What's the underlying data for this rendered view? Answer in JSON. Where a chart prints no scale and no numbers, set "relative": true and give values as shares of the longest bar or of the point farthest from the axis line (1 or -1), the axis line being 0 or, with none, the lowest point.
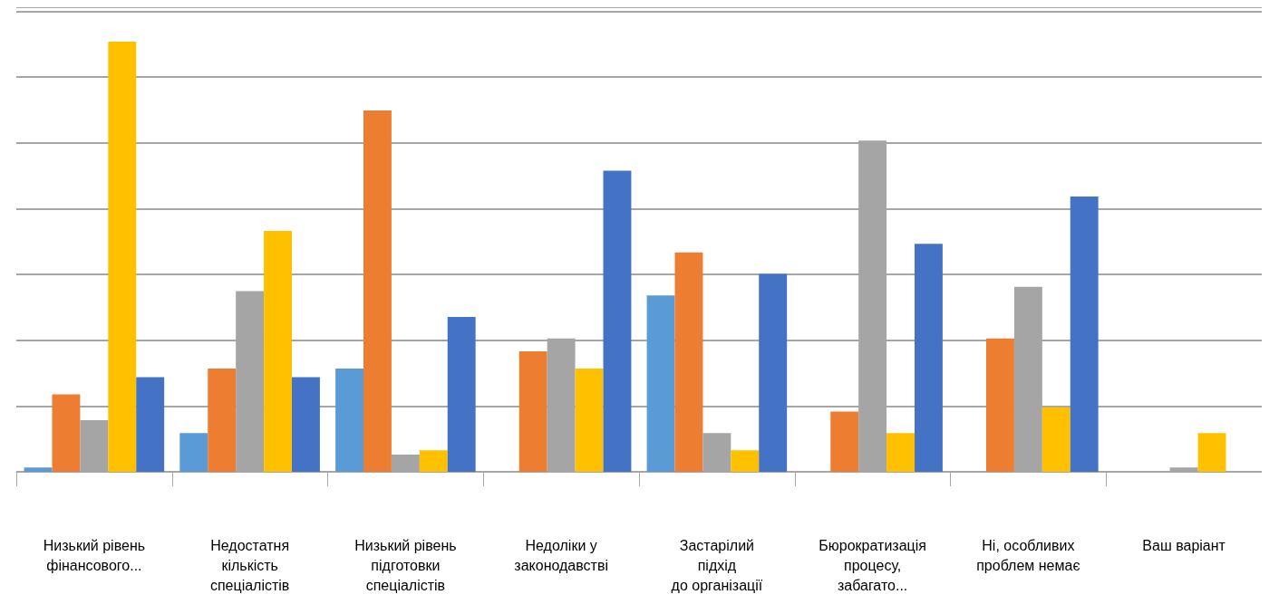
{
  "chart_data": {
    "type": "bar",
    "relative": true,
    "grid": "y",
    "categories": [
      "Низький рівень\nфінансового...",
      "Недостатня\nкількість\nспеціалістів",
      "Низький рівень\nпідготовки\nспеціалістів",
      "Недоліки у\nзаконодавстві",
      "Застарілий\nпідхід\nдо організації",
      "Бюрократизація\nпроцесу,\nзабагато...",
      "Ні, особливих\nпроблем немає",
      "Ваш варіант"
    ],
    "series": [
      {
        "color": "#5b9bd5",
        "values": [
          0.01,
          0.09,
          0.24,
          0,
          0.41,
          0,
          0,
          0
        ]
      },
      {
        "color": "#ed7d31",
        "values": [
          0.18,
          0.24,
          0.84,
          0.28,
          0.51,
          0.14,
          0.31,
          0
        ]
      },
      {
        "color": "#a5a5a5",
        "values": [
          0.12,
          0.42,
          0.04,
          0.31,
          0.09,
          0.77,
          0.43,
          0.01
        ]
      },
      {
        "color": "#ffc000",
        "values": [
          1,
          0.56,
          0.05,
          0.24,
          0.05,
          0.09,
          0.15,
          0.09
        ]
      },
      {
        "color": "#4472c4",
        "values": [
          0.22,
          0.22,
          0.36,
          0.7,
          0.46,
          0.53,
          0.64,
          0
        ]
      }
    ]
  }
}
